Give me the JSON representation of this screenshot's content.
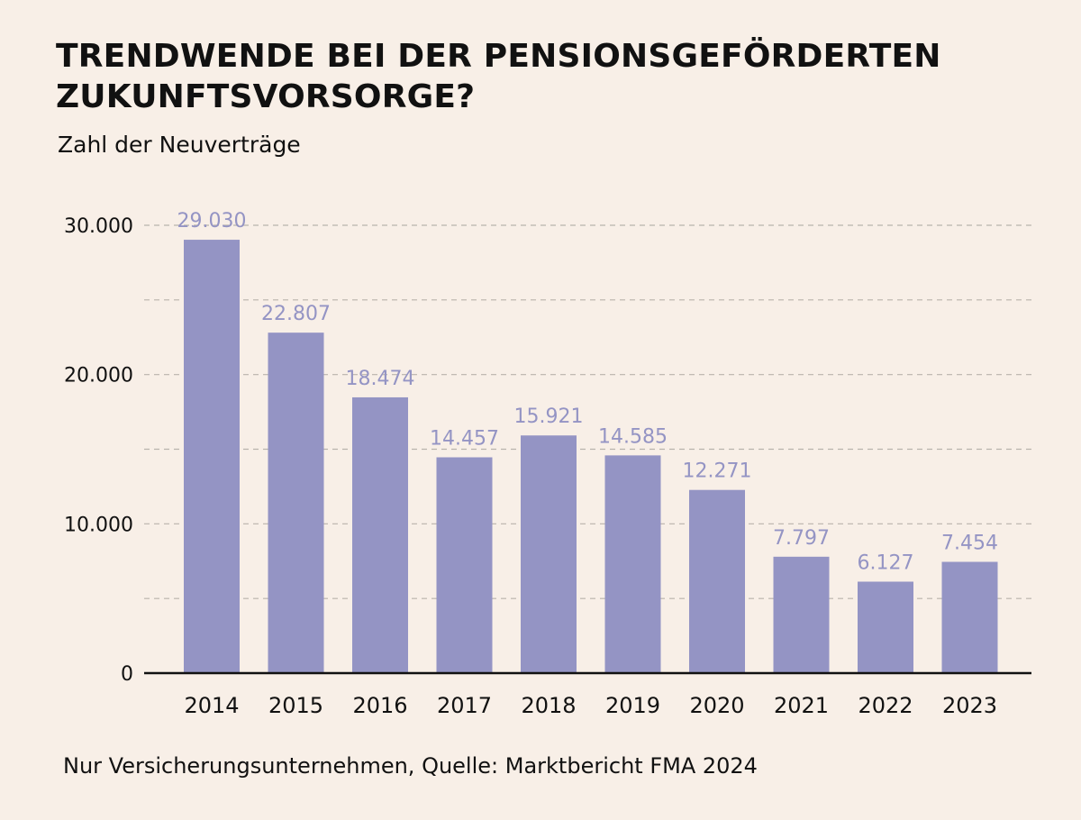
{
  "title": "TRENDWENDE BEI DER PENSIONSGEFÖRDERTEN ZUKUNFTSVORSORGE?",
  "subtitle": "Zahl der Neuverträge",
  "source": "Nur Versicherungsunternehmen, Quelle: Marktbericht FMA 2024",
  "colors": {
    "bar": "#9494c4",
    "label": "#9494c4",
    "grid": "#b9b3ac",
    "axis": "#111111",
    "background": "#f8efe7"
  },
  "chart_data": {
    "type": "bar",
    "title": "TRENDWENDE BEI DER PENSIONSGEFÖRDERTEN ZUKUNFTSVORSORGE?",
    "ylabel": "Zahl der Neuverträge",
    "xlabel": "",
    "categories": [
      "2014",
      "2015",
      "2016",
      "2017",
      "2018",
      "2019",
      "2020",
      "2021",
      "2022",
      "2023"
    ],
    "values": [
      29030,
      22807,
      18474,
      14457,
      15921,
      14585,
      12271,
      7797,
      6127,
      7454
    ],
    "value_labels": [
      "29.030",
      "22.807",
      "18.474",
      "14.457",
      "15.921",
      "14.585",
      "12.271",
      "7.797",
      "6.127",
      "7.454"
    ],
    "ylim": [
      0,
      30000
    ],
    "yticks": [
      0,
      10000,
      20000,
      30000
    ],
    "ytick_labels": [
      "0",
      "10.000",
      "20.000",
      "30.000"
    ],
    "grid_minor_step": 5000,
    "grid": true,
    "legend": "none"
  }
}
